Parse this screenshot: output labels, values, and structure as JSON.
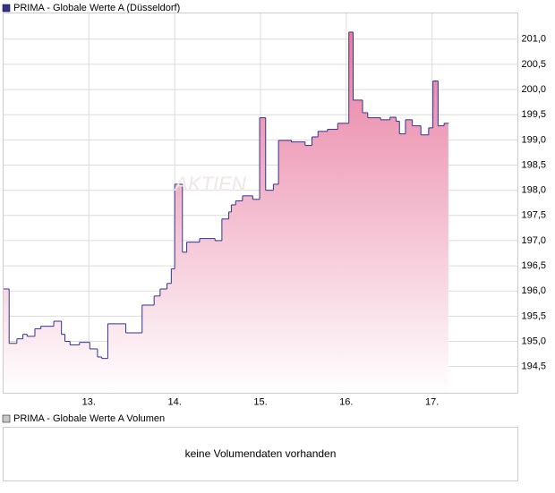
{
  "chart_data": {
    "type": "step-area",
    "legend": "PRIMA - Globale Werte A (Düsseldorf)",
    "watermark": "AKTIEN",
    "series": [
      {
        "name": "PRIMA - Globale Werte A (Düsseldorf)",
        "color": "#33338f",
        "fill": "#e87ba0",
        "x": [
          12.0,
          12.07,
          12.16,
          12.23,
          12.28,
          12.37,
          12.44,
          12.59,
          12.68,
          12.72,
          12.78,
          12.89,
          13.01,
          13.1,
          13.15,
          13.22,
          13.43,
          13.62,
          13.76,
          13.83,
          13.91,
          13.96,
          14.0,
          14.09,
          14.14,
          14.29,
          14.47,
          14.55,
          14.63,
          14.66,
          14.71,
          14.79,
          14.91,
          14.99,
          15.06,
          15.15,
          15.21,
          15.36,
          15.52,
          15.6,
          15.67,
          15.78,
          15.9,
          16.03,
          16.08,
          16.19,
          16.25,
          16.4,
          16.51,
          16.58,
          16.62,
          16.69,
          16.77,
          16.87,
          16.96,
          17.01,
          17.07,
          17.14,
          17.19
        ],
        "values": [
          196.04,
          194.96,
          195.05,
          195.14,
          195.1,
          195.25,
          195.3,
          195.4,
          195.14,
          195.0,
          194.93,
          194.98,
          194.85,
          194.69,
          194.66,
          195.35,
          195.17,
          195.72,
          195.9,
          196.04,
          196.15,
          196.44,
          198.12,
          196.77,
          196.97,
          197.04,
          197.0,
          197.43,
          197.57,
          197.71,
          197.79,
          197.89,
          197.82,
          199.44,
          198.0,
          198.12,
          198.99,
          198.96,
          198.89,
          199.06,
          199.17,
          199.21,
          199.33,
          201.14,
          199.79,
          199.54,
          199.44,
          199.4,
          199.45,
          199.37,
          199.12,
          199.4,
          199.28,
          199.1,
          199.24,
          200.17,
          199.28,
          199.33,
          199.33
        ]
      }
    ],
    "xlim": [
      12,
      18
    ],
    "xticks": [
      {
        "value": 13,
        "label": "13."
      },
      {
        "value": 14,
        "label": "14."
      },
      {
        "value": 15,
        "label": "15."
      },
      {
        "value": 16,
        "label": "16."
      },
      {
        "value": 17,
        "label": "17."
      }
    ],
    "ylim": [
      193.97,
      201.52
    ],
    "yticks": [
      {
        "value": 194.5,
        "label": "194,5"
      },
      {
        "value": 195,
        "label": "195,0"
      },
      {
        "value": 195.5,
        "label": "195,5"
      },
      {
        "value": 196,
        "label": "196,0"
      },
      {
        "value": 196.5,
        "label": "196,5"
      },
      {
        "value": 197,
        "label": "197,0"
      },
      {
        "value": 197.5,
        "label": "197,5"
      },
      {
        "value": 198,
        "label": "198,0"
      },
      {
        "value": 198.5,
        "label": "198,5"
      },
      {
        "value": 199,
        "label": "199,0"
      },
      {
        "value": 199.5,
        "label": "199,5"
      },
      {
        "value": 200,
        "label": "200,0"
      },
      {
        "value": 200.5,
        "label": "200,5"
      },
      {
        "value": 201,
        "label": "201,0"
      }
    ],
    "grid": true
  },
  "volume_panel": {
    "legend": "PRIMA - Globale Werte A Volumen",
    "message": "keine Volumendaten vorhanden"
  }
}
